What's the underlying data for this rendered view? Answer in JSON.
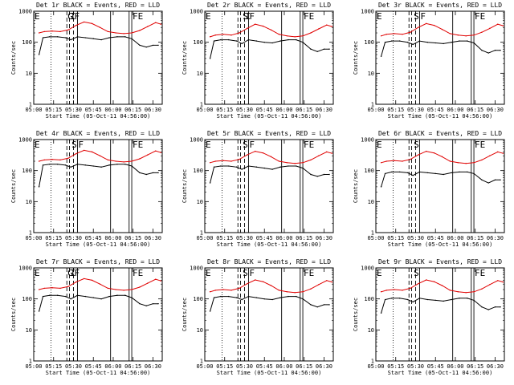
{
  "chart_data": {
    "type": "line",
    "rows": 3,
    "cols": 3,
    "xlabel": "Start Time (05-Oct-11 04:56:00)",
    "ylabel": "Counts/sec",
    "x_ticks": [
      "05:00",
      "05:15",
      "05:30",
      "05:45",
      "06:00",
      "06:15",
      "06:30"
    ],
    "x_range": [
      "05:00",
      "06:37"
    ],
    "y_scale": "log",
    "y_range": [
      1,
      1000
    ],
    "y_ticks": [
      "1",
      "10",
      "100",
      "1000"
    ],
    "series_colors": {
      "events": "#000000",
      "lld": "#e00000"
    },
    "panels": [
      {
        "title": "Det 1r BLACK = Events, RED = LLD",
        "markers": [
          {
            "text": "E",
            "x": "05:00"
          },
          {
            "text": "G",
            "x": "05:25"
          },
          {
            "text": "F",
            "x": "05:30"
          },
          {
            "text": "I",
            "x": "05:27"
          },
          {
            "text": "FE",
            "x": "06:14"
          }
        ],
        "events": {
          "x": [
            "05:04",
            "05:07",
            "05:12",
            "05:18",
            "05:24",
            "05:28",
            "05:33",
            "05:39",
            "05:45",
            "05:51",
            "05:57",
            "06:03",
            "06:09",
            "06:14",
            "06:20",
            "06:25",
            "06:30",
            "06:34"
          ],
          "y": [
            40,
            140,
            150,
            150,
            140,
            120,
            150,
            140,
            130,
            120,
            140,
            150,
            150,
            130,
            80,
            70,
            80,
            80
          ]
        },
        "lld": {
          "x": [
            "05:04",
            "05:08",
            "05:14",
            "05:20",
            "05:26",
            "05:32",
            "05:38",
            "05:44",
            "05:50",
            "05:56",
            "06:02",
            "06:08",
            "06:14",
            "06:20",
            "06:26",
            "06:32",
            "06:36"
          ],
          "y": [
            200,
            220,
            230,
            220,
            250,
            350,
            450,
            400,
            300,
            220,
            200,
            190,
            200,
            240,
            320,
            430,
            380
          ]
        }
      },
      {
        "title": "Det 2r BLACK = Events, RED = LLD",
        "markers": [
          {
            "text": "E",
            "x": "05:00"
          },
          {
            "text": "S",
            "x": "05:28"
          },
          {
            "text": "F",
            "x": "05:33"
          },
          {
            "text": "I",
            "x": "05:30"
          },
          {
            "text": "FE",
            "x": "06:14"
          }
        ],
        "events": {
          "x": [
            "05:04",
            "05:07",
            "05:12",
            "05:18",
            "05:24",
            "05:28",
            "05:33",
            "05:39",
            "05:45",
            "05:51",
            "05:57",
            "06:03",
            "06:09",
            "06:14",
            "06:20",
            "06:25",
            "06:30",
            "06:34"
          ],
          "y": [
            30,
            110,
            120,
            120,
            110,
            90,
            120,
            110,
            100,
            95,
            110,
            120,
            120,
            100,
            60,
            50,
            60,
            60
          ]
        },
        "lld": {
          "x": [
            "05:04",
            "05:08",
            "05:14",
            "05:20",
            "05:26",
            "05:32",
            "05:38",
            "05:44",
            "05:50",
            "05:56",
            "06:02",
            "06:08",
            "06:14",
            "06:20",
            "06:26",
            "06:32",
            "06:36"
          ],
          "y": [
            150,
            170,
            180,
            170,
            200,
            280,
            380,
            330,
            250,
            180,
            160,
            150,
            160,
            200,
            270,
            360,
            320
          ]
        }
      },
      {
        "title": "Det 3r BLACK = Events, RED = LLD",
        "markers": [
          {
            "text": "E",
            "x": "05:00"
          },
          {
            "text": "S",
            "x": "05:28"
          },
          {
            "text": "F",
            "x": "05:33"
          },
          {
            "text": "FE",
            "x": "06:14"
          }
        ],
        "events": {
          "x": [
            "05:04",
            "05:07",
            "05:12",
            "05:18",
            "05:24",
            "05:28",
            "05:33",
            "05:39",
            "05:45",
            "05:51",
            "05:57",
            "06:03",
            "06:09",
            "06:14",
            "06:20",
            "06:25",
            "06:30",
            "06:34"
          ],
          "y": [
            35,
            100,
            110,
            110,
            100,
            85,
            110,
            100,
            95,
            90,
            100,
            110,
            110,
            95,
            55,
            45,
            55,
            55
          ]
        },
        "lld": {
          "x": [
            "05:04",
            "05:08",
            "05:14",
            "05:20",
            "05:26",
            "05:32",
            "05:38",
            "05:44",
            "05:50",
            "05:56",
            "06:02",
            "06:08",
            "06:14",
            "06:20",
            "06:26",
            "06:32",
            "06:36"
          ],
          "y": [
            160,
            180,
            190,
            180,
            210,
            300,
            400,
            350,
            260,
            190,
            170,
            160,
            170,
            210,
            280,
            380,
            340
          ]
        }
      },
      {
        "title": "Det 4r BLACK = Events, RED = LLD",
        "markers": [
          {
            "text": "E",
            "x": "05:00"
          },
          {
            "text": "S",
            "x": "05:28"
          },
          {
            "text": "F",
            "x": "05:33"
          },
          {
            "text": "FE",
            "x": "06:14"
          }
        ],
        "events": {
          "x": [
            "05:04",
            "05:07",
            "05:12",
            "05:18",
            "05:24",
            "05:28",
            "05:33",
            "05:39",
            "05:45",
            "05:51",
            "05:57",
            "06:03",
            "06:09",
            "06:14",
            "06:20",
            "06:25",
            "06:30",
            "06:34"
          ],
          "y": [
            30,
            150,
            160,
            160,
            150,
            130,
            160,
            150,
            140,
            130,
            150,
            160,
            160,
            140,
            85,
            75,
            85,
            85
          ]
        },
        "lld": {
          "x": [
            "05:04",
            "05:08",
            "05:14",
            "05:20",
            "05:26",
            "05:32",
            "05:38",
            "05:44",
            "05:50",
            "05:56",
            "06:02",
            "06:08",
            "06:14",
            "06:20",
            "06:26",
            "06:32",
            "06:36"
          ],
          "y": [
            200,
            220,
            230,
            220,
            250,
            350,
            450,
            400,
            300,
            220,
            200,
            190,
            200,
            240,
            320,
            430,
            380
          ]
        }
      },
      {
        "title": "Det 5r BLACK = Events, RED = LLD",
        "markers": [
          {
            "text": "E",
            "x": "05:00"
          },
          {
            "text": "S",
            "x": "05:28"
          },
          {
            "text": "F",
            "x": "05:33"
          },
          {
            "text": "FE",
            "x": "06:14"
          }
        ],
        "events": {
          "x": [
            "05:04",
            "05:07",
            "05:12",
            "05:18",
            "05:24",
            "05:28",
            "05:33",
            "05:39",
            "05:45",
            "05:51",
            "05:57",
            "06:03",
            "06:09",
            "06:14",
            "06:20",
            "06:25",
            "06:30",
            "06:34"
          ],
          "y": [
            40,
            130,
            140,
            140,
            130,
            110,
            140,
            130,
            120,
            110,
            130,
            140,
            140,
            120,
            75,
            65,
            75,
            75
          ]
        },
        "lld": {
          "x": [
            "05:04",
            "05:08",
            "05:14",
            "05:20",
            "05:26",
            "05:32",
            "05:38",
            "05:44",
            "05:50",
            "05:56",
            "06:02",
            "06:08",
            "06:14",
            "06:20",
            "06:26",
            "06:32",
            "06:36"
          ],
          "y": [
            180,
            200,
            210,
            200,
            230,
            320,
            420,
            370,
            280,
            200,
            180,
            170,
            180,
            220,
            300,
            400,
            360
          ]
        }
      },
      {
        "title": "Det 6r BLACK = Events, RED = LLD",
        "markers": [
          {
            "text": "E",
            "x": "05:00"
          },
          {
            "text": "S",
            "x": "05:28"
          },
          {
            "text": "FE",
            "x": "06:14"
          }
        ],
        "events": {
          "x": [
            "05:04",
            "05:07",
            "05:12",
            "05:18",
            "05:24",
            "05:28",
            "05:33",
            "05:39",
            "05:45",
            "05:51",
            "05:57",
            "06:03",
            "06:09",
            "06:14",
            "06:20",
            "06:25",
            "06:30",
            "06:34"
          ],
          "y": [
            30,
            80,
            90,
            90,
            85,
            70,
            90,
            85,
            80,
            75,
            85,
            90,
            90,
            80,
            50,
            40,
            50,
            50
          ]
        },
        "lld": {
          "x": [
            "05:04",
            "05:08",
            "05:14",
            "05:20",
            "05:26",
            "05:32",
            "05:38",
            "05:44",
            "05:50",
            "05:56",
            "06:02",
            "06:08",
            "06:14",
            "06:20",
            "06:26",
            "06:32",
            "06:36"
          ],
          "y": [
            180,
            200,
            210,
            200,
            230,
            320,
            420,
            370,
            280,
            200,
            180,
            170,
            180,
            220,
            300,
            400,
            360
          ]
        }
      },
      {
        "title": "Det 7r BLACK = Events, RED = LLD",
        "markers": [
          {
            "text": "E",
            "x": "05:00"
          },
          {
            "text": "G",
            "x": "05:25"
          },
          {
            "text": "F",
            "x": "05:30"
          },
          {
            "text": "I",
            "x": "05:27"
          },
          {
            "text": "FE",
            "x": "06:14"
          }
        ],
        "events": {
          "x": [
            "05:04",
            "05:07",
            "05:12",
            "05:18",
            "05:24",
            "05:28",
            "05:33",
            "05:39",
            "05:45",
            "05:51",
            "05:57",
            "06:03",
            "06:09",
            "06:14",
            "06:20",
            "06:25",
            "06:30",
            "06:34"
          ],
          "y": [
            40,
            120,
            130,
            130,
            120,
            100,
            130,
            120,
            110,
            100,
            120,
            130,
            130,
            110,
            70,
            60,
            70,
            70
          ]
        },
        "lld": {
          "x": [
            "05:04",
            "05:08",
            "05:14",
            "05:20",
            "05:26",
            "05:32",
            "05:38",
            "05:44",
            "05:50",
            "05:56",
            "06:02",
            "06:08",
            "06:14",
            "06:20",
            "06:26",
            "06:32",
            "06:36"
          ],
          "y": [
            200,
            220,
            230,
            220,
            250,
            350,
            450,
            400,
            300,
            220,
            200,
            190,
            200,
            240,
            320,
            430,
            380
          ]
        }
      },
      {
        "title": "Det 8r BLACK = Events, RED = LLD",
        "markers": [
          {
            "text": "E",
            "x": "05:00"
          },
          {
            "text": "S",
            "x": "05:28"
          },
          {
            "text": "F",
            "x": "05:33"
          },
          {
            "text": "FE",
            "x": "06:14"
          }
        ],
        "events": {
          "x": [
            "05:04",
            "05:07",
            "05:12",
            "05:18",
            "05:24",
            "05:28",
            "05:33",
            "05:39",
            "05:45",
            "05:51",
            "05:57",
            "06:03",
            "06:09",
            "06:14",
            "06:20",
            "06:25",
            "06:30",
            "06:34"
          ],
          "y": [
            40,
            110,
            120,
            120,
            110,
            95,
            120,
            110,
            100,
            95,
            110,
            120,
            120,
            100,
            65,
            55,
            65,
            65
          ]
        },
        "lld": {
          "x": [
            "05:04",
            "05:08",
            "05:14",
            "05:20",
            "05:26",
            "05:32",
            "05:38",
            "05:44",
            "05:50",
            "05:56",
            "06:02",
            "06:08",
            "06:14",
            "06:20",
            "06:26",
            "06:32",
            "06:36"
          ],
          "y": [
            170,
            190,
            200,
            190,
            220,
            310,
            410,
            360,
            270,
            190,
            170,
            160,
            170,
            210,
            290,
            390,
            350
          ]
        }
      },
      {
        "title": "Det 9r BLACK = Events, RED = LLD",
        "markers": [
          {
            "text": "E",
            "x": "05:00"
          },
          {
            "text": "S",
            "x": "05:28"
          },
          {
            "text": "FE",
            "x": "06:14"
          }
        ],
        "events": {
          "x": [
            "05:04",
            "05:07",
            "05:12",
            "05:18",
            "05:24",
            "05:28",
            "05:33",
            "05:39",
            "05:45",
            "05:51",
            "05:57",
            "06:03",
            "06:09",
            "06:14",
            "06:20",
            "06:25",
            "06:30",
            "06:34"
          ],
          "y": [
            35,
            95,
            105,
            105,
            95,
            80,
            105,
            95,
            90,
            85,
            95,
            105,
            105,
            90,
            55,
            45,
            55,
            55
          ]
        },
        "lld": {
          "x": [
            "05:04",
            "05:08",
            "05:14",
            "05:20",
            "05:26",
            "05:32",
            "05:38",
            "05:44",
            "05:50",
            "05:56",
            "06:02",
            "06:08",
            "06:14",
            "06:20",
            "06:26",
            "06:32",
            "06:36"
          ],
          "y": [
            170,
            190,
            200,
            190,
            220,
            310,
            410,
            360,
            270,
            190,
            170,
            160,
            170,
            210,
            290,
            390,
            350
          ]
        }
      }
    ],
    "dotted_lines": [
      "05:13"
    ],
    "dashed_lines": [
      "05:25",
      "05:27",
      "05:30"
    ],
    "solid_lines": [
      "05:33",
      "05:58",
      "06:12",
      "06:14"
    ],
    "legend": "none",
    "grid": false
  }
}
